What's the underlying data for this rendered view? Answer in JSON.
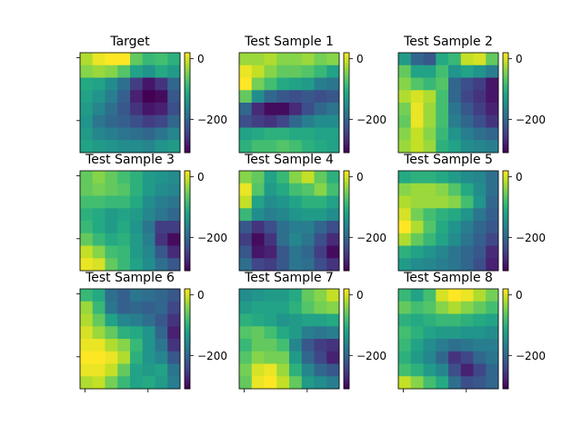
{
  "figure": {
    "colormap": "viridis",
    "background": "#ffffff"
  },
  "chart_data": [
    {
      "type": "heatmap",
      "title": "Target",
      "colorbar": {
        "ticks": [
          0,
          -200
        ],
        "vmin": -310,
        "vmax": 20
      },
      "values": [
        [
          -20,
          10,
          20,
          20,
          -60,
          -90,
          -80,
          -100
        ],
        [
          -40,
          -30,
          -40,
          -70,
          -120,
          -140,
          -110,
          -130
        ],
        [
          -110,
          -120,
          -150,
          -190,
          -250,
          -290,
          -260,
          -200
        ],
        [
          -120,
          -140,
          -170,
          -210,
          -280,
          -310,
          -300,
          -220
        ],
        [
          -130,
          -160,
          -190,
          -220,
          -260,
          -290,
          -280,
          -230
        ],
        [
          -140,
          -180,
          -200,
          -210,
          -230,
          -250,
          -240,
          -200
        ],
        [
          -130,
          -160,
          -170,
          -180,
          -190,
          -200,
          -180,
          -160
        ],
        [
          -120,
          -130,
          -140,
          -150,
          -150,
          -160,
          -140,
          -130
        ]
      ]
    },
    {
      "type": "heatmap",
      "title": "Test Sample 1",
      "colorbar": {
        "ticks": [
          0,
          -200
        ],
        "vmin": -310,
        "vmax": 20
      },
      "values": [
        [
          -30,
          -30,
          -20,
          -40,
          -40,
          -30,
          -50,
          -40
        ],
        [
          10,
          -10,
          -40,
          -60,
          -60,
          -70,
          -90,
          -120
        ],
        [
          20,
          -50,
          -80,
          -110,
          -120,
          -130,
          -170,
          -180
        ],
        [
          -60,
          -150,
          -200,
          -220,
          -230,
          -220,
          -230,
          -220
        ],
        [
          -200,
          -270,
          -300,
          -300,
          -270,
          -230,
          -200,
          -180
        ],
        [
          -230,
          -250,
          -260,
          -240,
          -200,
          -170,
          -150,
          -150
        ],
        [
          -120,
          -110,
          -100,
          -100,
          -110,
          -110,
          -120,
          -120
        ],
        [
          -100,
          -80,
          -80,
          -70,
          -80,
          -100,
          -110,
          -120
        ]
      ]
    },
    {
      "type": "heatmap",
      "title": "Test Sample 2",
      "colorbar": {
        "ticks": [
          0,
          -200
        ],
        "vmin": -310,
        "vmax": 20
      },
      "values": [
        [
          -130,
          -200,
          -220,
          -110,
          -90,
          -10,
          0,
          -60
        ],
        [
          -60,
          -120,
          -120,
          -80,
          -140,
          -120,
          -140,
          -170
        ],
        [
          -40,
          -70,
          -90,
          -70,
          -200,
          -230,
          -250,
          -290
        ],
        [
          -20,
          0,
          -20,
          -80,
          -200,
          -240,
          -260,
          -290
        ],
        [
          -50,
          10,
          -30,
          -80,
          -180,
          -220,
          -250,
          -280
        ],
        [
          -60,
          10,
          -30,
          -80,
          -170,
          -200,
          -230,
          -260
        ],
        [
          -40,
          -10,
          -40,
          -90,
          -140,
          -170,
          -190,
          -200
        ],
        [
          -30,
          -10,
          -30,
          -100,
          -120,
          -150,
          -160,
          -170
        ]
      ]
    },
    {
      "type": "heatmap",
      "title": "Test Sample 3",
      "colorbar": {
        "ticks": [
          0,
          -200
        ],
        "vmin": -310,
        "vmax": 20
      },
      "values": [
        [
          -60,
          -40,
          -60,
          -80,
          -100,
          -130,
          -140,
          -150
        ],
        [
          -60,
          -50,
          -60,
          -70,
          -100,
          -130,
          -150,
          -160
        ],
        [
          -80,
          -80,
          -90,
          -90,
          -110,
          -150,
          -170,
          -180
        ],
        [
          -100,
          -110,
          -130,
          -120,
          -130,
          -160,
          -180,
          -200
        ],
        [
          -90,
          -110,
          -130,
          -110,
          -140,
          -180,
          -250,
          -250
        ],
        [
          -60,
          -90,
          -110,
          -100,
          -130,
          -170,
          -260,
          -300
        ],
        [
          -10,
          -40,
          -80,
          -90,
          -130,
          -160,
          -220,
          -270
        ],
        [
          10,
          0,
          -60,
          -90,
          -120,
          -150,
          -190,
          -220
        ]
      ]
    },
    {
      "type": "heatmap",
      "title": "Test Sample 4",
      "colorbar": {
        "ticks": [
          0,
          -200
        ],
        "vmin": -310,
        "vmax": 20
      },
      "values": [
        [
          -40,
          -60,
          -120,
          -90,
          -40,
          -10,
          -60,
          -100
        ],
        [
          10,
          -70,
          -130,
          -110,
          -80,
          -70,
          -40,
          -80
        ],
        [
          -10,
          -120,
          -150,
          -140,
          -120,
          -100,
          -100,
          -120
        ],
        [
          -90,
          -150,
          -170,
          -160,
          -140,
          -130,
          -130,
          -150
        ],
        [
          -220,
          -260,
          -230,
          -190,
          -170,
          -170,
          -200,
          -230
        ],
        [
          -250,
          -300,
          -260,
          -190,
          -160,
          -180,
          -230,
          -270
        ],
        [
          -220,
          -290,
          -280,
          -220,
          -180,
          -200,
          -250,
          -300
        ],
        [
          -190,
          -240,
          -250,
          -220,
          -180,
          -190,
          -230,
          -260
        ]
      ]
    },
    {
      "type": "heatmap",
      "title": "Test Sample 5",
      "colorbar": {
        "ticks": [
          0,
          -200
        ],
        "vmin": -310,
        "vmax": 20
      },
      "values": [
        [
          -110,
          -100,
          -100,
          -110,
          -130,
          -150,
          -160,
          -190
        ],
        [
          -40,
          -30,
          -30,
          -40,
          -70,
          -110,
          -150,
          -190
        ],
        [
          -20,
          -30,
          -30,
          -30,
          -40,
          -80,
          -140,
          -200
        ],
        [
          0,
          -50,
          -80,
          -100,
          -110,
          -140,
          -180,
          -210
        ],
        [
          20,
          -20,
          -70,
          -110,
          -140,
          -170,
          -200,
          -220
        ],
        [
          -20,
          -60,
          -90,
          -120,
          -150,
          -180,
          -210,
          -240
        ],
        [
          -100,
          -120,
          -140,
          -160,
          -180,
          -200,
          -220,
          -270
        ],
        [
          -130,
          -150,
          -160,
          -170,
          -180,
          -200,
          -230,
          -280
        ]
      ]
    },
    {
      "type": "heatmap",
      "title": "Test Sample 6",
      "colorbar": {
        "ticks": [
          0,
          -200
        ],
        "vmin": -310,
        "vmax": 20
      },
      "values": [
        [
          -90,
          -110,
          -190,
          -210,
          -180,
          -190,
          -200,
          -220
        ],
        [
          -30,
          -90,
          -180,
          -210,
          -200,
          -210,
          -200,
          -240
        ],
        [
          -20,
          -60,
          -120,
          -160,
          -170,
          -190,
          -220,
          -260
        ],
        [
          0,
          -30,
          -60,
          -100,
          -110,
          -140,
          -200,
          -280
        ],
        [
          10,
          10,
          -20,
          -40,
          -90,
          -140,
          -180,
          -260
        ],
        [
          20,
          20,
          10,
          -20,
          -100,
          -140,
          -160,
          -220
        ],
        [
          10,
          10,
          -10,
          -60,
          -120,
          -130,
          -120,
          -180
        ],
        [
          -20,
          -10,
          -50,
          -90,
          -120,
          -110,
          -130,
          -170
        ]
      ]
    },
    {
      "type": "heatmap",
      "title": "Test Sample 7",
      "colorbar": {
        "ticks": [
          0,
          -200
        ],
        "vmin": -310,
        "vmax": 20
      },
      "values": [
        [
          -150,
          -140,
          -130,
          -130,
          -110,
          -60,
          -40,
          -10
        ],
        [
          -130,
          -120,
          -120,
          -120,
          -100,
          -70,
          -50,
          -40
        ],
        [
          -100,
          -110,
          -120,
          -140,
          -130,
          -120,
          -120,
          -110
        ],
        [
          -70,
          -60,
          -80,
          -110,
          -130,
          -170,
          -180,
          -170
        ],
        [
          -90,
          -60,
          -60,
          -80,
          -160,
          -220,
          -250,
          -260
        ],
        [
          -70,
          -40,
          -50,
          -50,
          -130,
          -200,
          -240,
          -280
        ],
        [
          -50,
          0,
          10,
          -30,
          -100,
          -160,
          -200,
          -220
        ],
        [
          -60,
          10,
          20,
          -10,
          -60,
          -130,
          -150,
          -170
        ]
      ]
    },
    {
      "type": "heatmap",
      "title": "Test Sample 8",
      "colorbar": {
        "ticks": [
          0,
          -200
        ],
        "vmin": -310,
        "vmax": 20
      },
      "values": [
        [
          -90,
          -120,
          -80,
          0,
          20,
          10,
          -20,
          -50
        ],
        [
          -60,
          -80,
          -70,
          -40,
          -20,
          -40,
          -60,
          -80
        ],
        [
          -100,
          -110,
          -100,
          -90,
          -90,
          -100,
          -110,
          -120
        ],
        [
          -80,
          -100,
          -120,
          -130,
          -130,
          -140,
          -140,
          -150
        ],
        [
          -90,
          -120,
          -150,
          -170,
          -190,
          -180,
          -170,
          -170
        ],
        [
          -100,
          -130,
          -160,
          -200,
          -260,
          -240,
          -200,
          -180
        ],
        [
          -80,
          -100,
          -130,
          -160,
          -230,
          -280,
          -240,
          -200
        ],
        [
          -10,
          -40,
          -80,
          -110,
          -190,
          -230,
          -220,
          -200
        ]
      ]
    }
  ]
}
